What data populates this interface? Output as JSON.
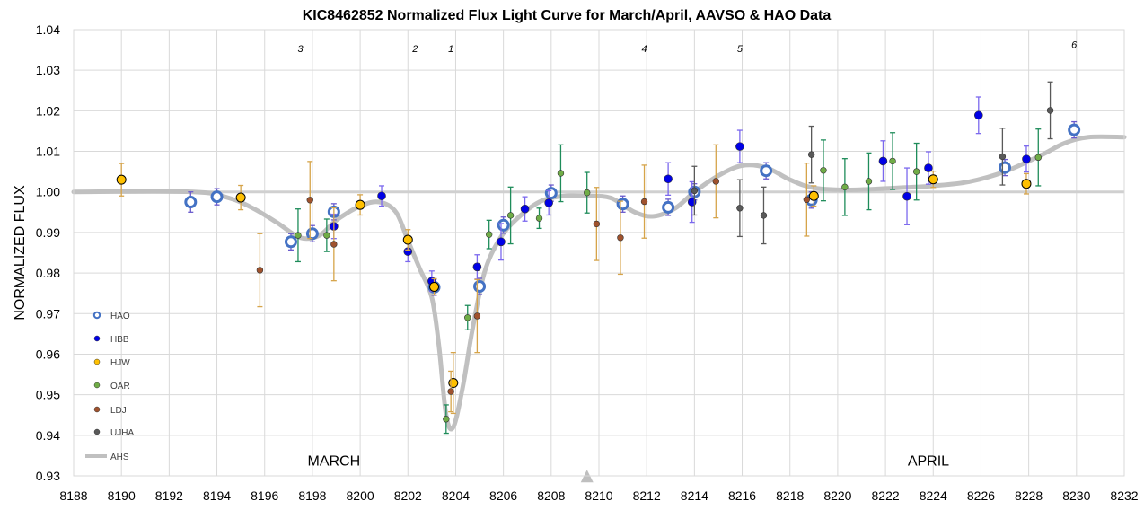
{
  "chart_data": {
    "type": "scatter",
    "title": "KIC8462852 Normalized  Flux Light Curve for March/April,  AAVSO & HAO Data",
    "xlabel": "",
    "ylabel": "NORMALIZED FLUX",
    "xlim": [
      8188,
      8232
    ],
    "ylim": [
      0.93,
      1.04
    ],
    "x_ticks": [
      "8188",
      "8190",
      "8192",
      "8194",
      "8196",
      "8198",
      "8200",
      "8202",
      "8204",
      "8206",
      "8208",
      "8210",
      "8212",
      "8214",
      "8216",
      "8218",
      "8220",
      "8222",
      "8224",
      "8226",
      "8228",
      "8230",
      "8232"
    ],
    "y_ticks": [
      "0.93",
      "0.94",
      "0.95",
      "0.96",
      "0.97",
      "0.98",
      "0.99",
      "1.00",
      "1.01",
      "1.02",
      "1.03",
      "1.04"
    ],
    "grid": "vertical and horizontal",
    "legend_position": "lower-left inside plot",
    "annotations": [
      {
        "text": "3",
        "x": 8197.5,
        "y": 1.0345
      },
      {
        "text": "2",
        "x": 8202.3,
        "y": 1.0345
      },
      {
        "text": "1",
        "x": 8203.8,
        "y": 1.0345
      },
      {
        "text": "4",
        "x": 8211.9,
        "y": 1.0345
      },
      {
        "text": "5",
        "x": 8215.9,
        "y": 1.0345
      },
      {
        "text": "6",
        "x": 8229.9,
        "y": 1.0355
      }
    ],
    "months": [
      {
        "text": "MARCH",
        "x": 8198.9,
        "y": 0.9325
      },
      {
        "text": "APRIL",
        "x": 8223.8,
        "y": 0.9325
      }
    ],
    "marker_triangle": {
      "x": 8209.5,
      "y": 0.9315,
      "color": "#bfbfbf"
    },
    "reference_line": {
      "y": 1.0,
      "color": "#d0d0d0"
    },
    "series": [
      {
        "name": "HAO",
        "marker": "open-circle",
        "color": "#4472c4",
        "errcolor": "#6a5acd",
        "points": [
          {
            "x": 8192.9,
            "y": 0.9975,
            "err": 0.0025
          },
          {
            "x": 8194.0,
            "y": 0.9988,
            "err": 0.002
          },
          {
            "x": 8197.1,
            "y": 0.9877,
            "err": 0.002
          },
          {
            "x": 8198.0,
            "y": 0.9897,
            "err": 0.002
          },
          {
            "x": 8198.9,
            "y": 0.9951,
            "err": 0.002
          },
          {
            "x": 8203.1,
            "y": 0.9765,
            "err": 0.002
          },
          {
            "x": 8205.0,
            "y": 0.9767,
            "err": 0.002
          },
          {
            "x": 8206.0,
            "y": 0.9918,
            "err": 0.002
          },
          {
            "x": 8208.0,
            "y": 0.9997,
            "err": 0.002
          },
          {
            "x": 8211.0,
            "y": 0.997,
            "err": 0.002
          },
          {
            "x": 8212.9,
            "y": 0.9962,
            "err": 0.002
          },
          {
            "x": 8214.0,
            "y": 1.0,
            "err": 0.002
          },
          {
            "x": 8217.0,
            "y": 1.0052,
            "err": 0.002
          },
          {
            "x": 8218.9,
            "y": 0.998,
            "err": 0.002
          },
          {
            "x": 8227.0,
            "y": 1.006,
            "err": 0.002
          },
          {
            "x": 8229.9,
            "y": 1.0153,
            "err": 0.002
          }
        ]
      },
      {
        "name": "HBB",
        "marker": "filled-circle",
        "color": "#0000e6",
        "errcolor": "#7b68ee",
        "points": [
          {
            "x": 8198.9,
            "y": 0.9915,
            "err": 0.003
          },
          {
            "x": 8200.9,
            "y": 0.999,
            "err": 0.0025
          },
          {
            "x": 8202.0,
            "y": 0.9853,
            "err": 0.0025
          },
          {
            "x": 8203.0,
            "y": 0.978,
            "err": 0.0025
          },
          {
            "x": 8204.9,
            "y": 0.9815,
            "err": 0.003
          },
          {
            "x": 8205.9,
            "y": 0.9877,
            "err": 0.0045
          },
          {
            "x": 8206.9,
            "y": 0.9958,
            "err": 0.003
          },
          {
            "x": 8207.9,
            "y": 0.9973,
            "err": 0.003
          },
          {
            "x": 8212.9,
            "y": 1.0032,
            "err": 0.004
          },
          {
            "x": 8213.9,
            "y": 0.9975,
            "err": 0.005
          },
          {
            "x": 8215.9,
            "y": 1.0112,
            "err": 0.004
          },
          {
            "x": 8221.9,
            "y": 1.0076,
            "err": 0.005
          },
          {
            "x": 8222.9,
            "y": 0.9989,
            "err": 0.007
          },
          {
            "x": 8223.8,
            "y": 1.0059,
            "err": 0.004
          },
          {
            "x": 8225.9,
            "y": 1.0189,
            "err": 0.0045
          },
          {
            "x": 8227.9,
            "y": 1.0081,
            "err": 0.0032
          }
        ]
      },
      {
        "name": "HJW",
        "marker": "filled-circle",
        "color": "#ffc000",
        "errcolor": "#d6a44a",
        "points": [
          {
            "x": 8190.0,
            "y": 1.003,
            "err": 0.004
          },
          {
            "x": 8195.0,
            "y": 0.9986,
            "err": 0.003
          },
          {
            "x": 8200.0,
            "y": 0.9968,
            "err": 0.0025
          },
          {
            "x": 8202.0,
            "y": 0.9882,
            "err": 0.0025
          },
          {
            "x": 8203.1,
            "y": 0.9766,
            "err": 0.002
          },
          {
            "x": 8203.9,
            "y": 0.9529,
            "err": 0.0075
          },
          {
            "x": 8219.0,
            "y": 0.999,
            "err": 0.0025
          },
          {
            "x": 8224.0,
            "y": 1.0031,
            "err": 0.002
          },
          {
            "x": 8227.9,
            "y": 1.002,
            "err": 0.0025
          }
        ]
      },
      {
        "name": "OAR",
        "marker": "filled-circle",
        "color": "#70ad47",
        "errcolor": "#1e8c5a",
        "points": [
          {
            "x": 8197.4,
            "y": 0.9893,
            "err": 0.0065
          },
          {
            "x": 8198.6,
            "y": 0.9893,
            "err": 0.004
          },
          {
            "x": 8203.6,
            "y": 0.944,
            "err": 0.0035
          },
          {
            "x": 8204.5,
            "y": 0.969,
            "err": 0.003
          },
          {
            "x": 8205.4,
            "y": 0.9895,
            "err": 0.0035
          },
          {
            "x": 8206.3,
            "y": 0.9942,
            "err": 0.007
          },
          {
            "x": 8207.5,
            "y": 0.9935,
            "err": 0.0025
          },
          {
            "x": 8208.4,
            "y": 1.0046,
            "err": 0.007
          },
          {
            "x": 8209.5,
            "y": 0.9998,
            "err": 0.005
          },
          {
            "x": 8219.4,
            "y": 1.0053,
            "err": 0.0075
          },
          {
            "x": 8220.3,
            "y": 1.0012,
            "err": 0.007
          },
          {
            "x": 8221.3,
            "y": 1.0026,
            "err": 0.007
          },
          {
            "x": 8222.3,
            "y": 1.0076,
            "err": 0.007
          },
          {
            "x": 8223.3,
            "y": 1.005,
            "err": 0.007
          },
          {
            "x": 8228.4,
            "y": 1.0085,
            "err": 0.007
          }
        ]
      },
      {
        "name": "LDJ",
        "marker": "filled-circle",
        "color": "#a0522d",
        "errcolor": "#d6a44a",
        "points": [
          {
            "x": 8195.8,
            "y": 0.9807,
            "err": 0.009
          },
          {
            "x": 8197.9,
            "y": 0.998,
            "err": 0.0095
          },
          {
            "x": 8198.9,
            "y": 0.9871,
            "err": 0.009
          },
          {
            "x": 8203.8,
            "y": 0.9508,
            "err": 0.005
          },
          {
            "x": 8204.9,
            "y": 0.9694,
            "err": 0.009
          },
          {
            "x": 8209.9,
            "y": 0.9921,
            "err": 0.009
          },
          {
            "x": 8210.9,
            "y": 0.9887,
            "err": 0.009
          },
          {
            "x": 8211.9,
            "y": 0.9976,
            "err": 0.009
          },
          {
            "x": 8214.9,
            "y": 1.0026,
            "err": 0.009
          },
          {
            "x": 8218.7,
            "y": 0.9981,
            "err": 0.009
          }
        ]
      },
      {
        "name": "UJHA",
        "marker": "filled-circle",
        "color": "#595959",
        "errcolor": "#595959",
        "points": [
          {
            "x": 8214.0,
            "y": 1.0003,
            "err": 0.006
          },
          {
            "x": 8215.9,
            "y": 0.996,
            "err": 0.007
          },
          {
            "x": 8216.9,
            "y": 0.9942,
            "err": 0.007
          },
          {
            "x": 8218.9,
            "y": 1.0092,
            "err": 0.007
          },
          {
            "x": 8226.9,
            "y": 1.0087,
            "err": 0.007
          },
          {
            "x": 8228.9,
            "y": 1.0201,
            "err": 0.007
          }
        ]
      },
      {
        "name": "AHS",
        "marker": "line",
        "color": "#c0c0c0",
        "points": [
          {
            "x": 8188.0,
            "y": 1.0
          },
          {
            "x": 8193.0,
            "y": 1.0
          },
          {
            "x": 8194.5,
            "y": 0.9985
          },
          {
            "x": 8195.5,
            "y": 0.996
          },
          {
            "x": 8196.5,
            "y": 0.9925
          },
          {
            "x": 8197.5,
            "y": 0.9887
          },
          {
            "x": 8198.3,
            "y": 0.9893
          },
          {
            "x": 8199.0,
            "y": 0.993
          },
          {
            "x": 8200.0,
            "y": 0.9965
          },
          {
            "x": 8200.8,
            "y": 0.9975
          },
          {
            "x": 8201.5,
            "y": 0.995
          },
          {
            "x": 8202.0,
            "y": 0.988
          },
          {
            "x": 8202.5,
            "y": 0.981
          },
          {
            "x": 8203.0,
            "y": 0.974
          },
          {
            "x": 8203.3,
            "y": 0.962
          },
          {
            "x": 8203.6,
            "y": 0.945
          },
          {
            "x": 8203.9,
            "y": 0.942
          },
          {
            "x": 8204.3,
            "y": 0.952
          },
          {
            "x": 8204.7,
            "y": 0.966
          },
          {
            "x": 8205.2,
            "y": 0.98
          },
          {
            "x": 8205.8,
            "y": 0.988
          },
          {
            "x": 8206.5,
            "y": 0.993
          },
          {
            "x": 8207.5,
            "y": 0.9975
          },
          {
            "x": 8208.5,
            "y": 0.999
          },
          {
            "x": 8209.5,
            "y": 0.999
          },
          {
            "x": 8210.5,
            "y": 0.9985
          },
          {
            "x": 8211.5,
            "y": 0.995
          },
          {
            "x": 8212.3,
            "y": 0.994
          },
          {
            "x": 8213.2,
            "y": 0.996
          },
          {
            "x": 8214.0,
            "y": 1.0
          },
          {
            "x": 8215.0,
            "y": 1.004
          },
          {
            "x": 8216.0,
            "y": 1.0065
          },
          {
            "x": 8217.0,
            "y": 1.006
          },
          {
            "x": 8218.0,
            "y": 1.003
          },
          {
            "x": 8219.0,
            "y": 1.001
          },
          {
            "x": 8220.5,
            "y": 1.0005
          },
          {
            "x": 8222.5,
            "y": 1.001
          },
          {
            "x": 8224.0,
            "y": 1.0015
          },
          {
            "x": 8225.5,
            "y": 1.0025
          },
          {
            "x": 8227.0,
            "y": 1.005
          },
          {
            "x": 8228.5,
            "y": 1.009
          },
          {
            "x": 8229.5,
            "y": 1.012
          },
          {
            "x": 8230.5,
            "y": 1.0135
          },
          {
            "x": 8232.0,
            "y": 1.0135
          }
        ]
      }
    ]
  }
}
